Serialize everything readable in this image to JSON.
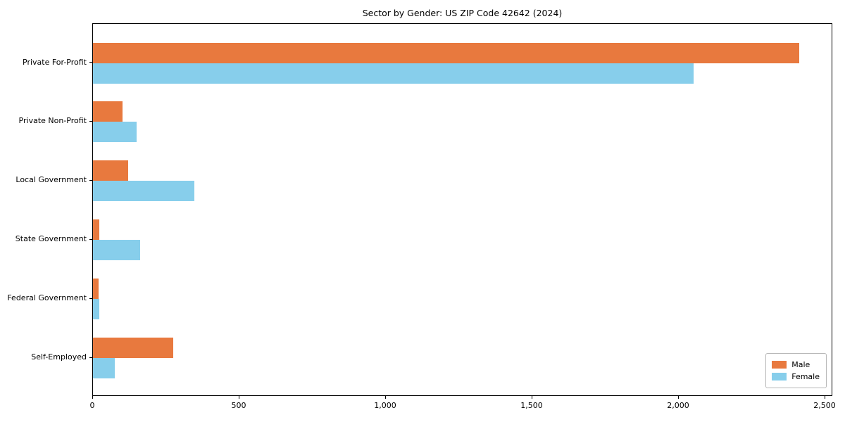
{
  "figure": {
    "title": "Sector by Gender: US ZIP Code 42642 (2024)"
  },
  "chart_data": {
    "type": "bar",
    "orientation": "horizontal",
    "title": "Sector by Gender: US ZIP Code 42642 (2024)",
    "categories": [
      "Private For-Profit",
      "Private Non-Profit",
      "Local Government",
      "State Government",
      "Federal Government",
      "Self-Employed"
    ],
    "series": [
      {
        "name": "Male",
        "color": "#e8793e",
        "values": [
          2410,
          100,
          120,
          22,
          18,
          275
        ]
      },
      {
        "name": "Female",
        "color": "#87ceeb",
        "values": [
          2050,
          148,
          345,
          160,
          22,
          75
        ]
      }
    ],
    "xlabel": "",
    "ylabel": "",
    "xlim": [
      0,
      2526
    ],
    "x_ticks": {
      "values": [
        0,
        500,
        1000,
        1500,
        2000,
        2500
      ],
      "labels": [
        "0",
        "500",
        "1,000",
        "1,500",
        "2,000",
        "2,500"
      ]
    },
    "grid": false,
    "legend": {
      "position": "lower right",
      "entries": [
        "Male",
        "Female"
      ]
    }
  }
}
